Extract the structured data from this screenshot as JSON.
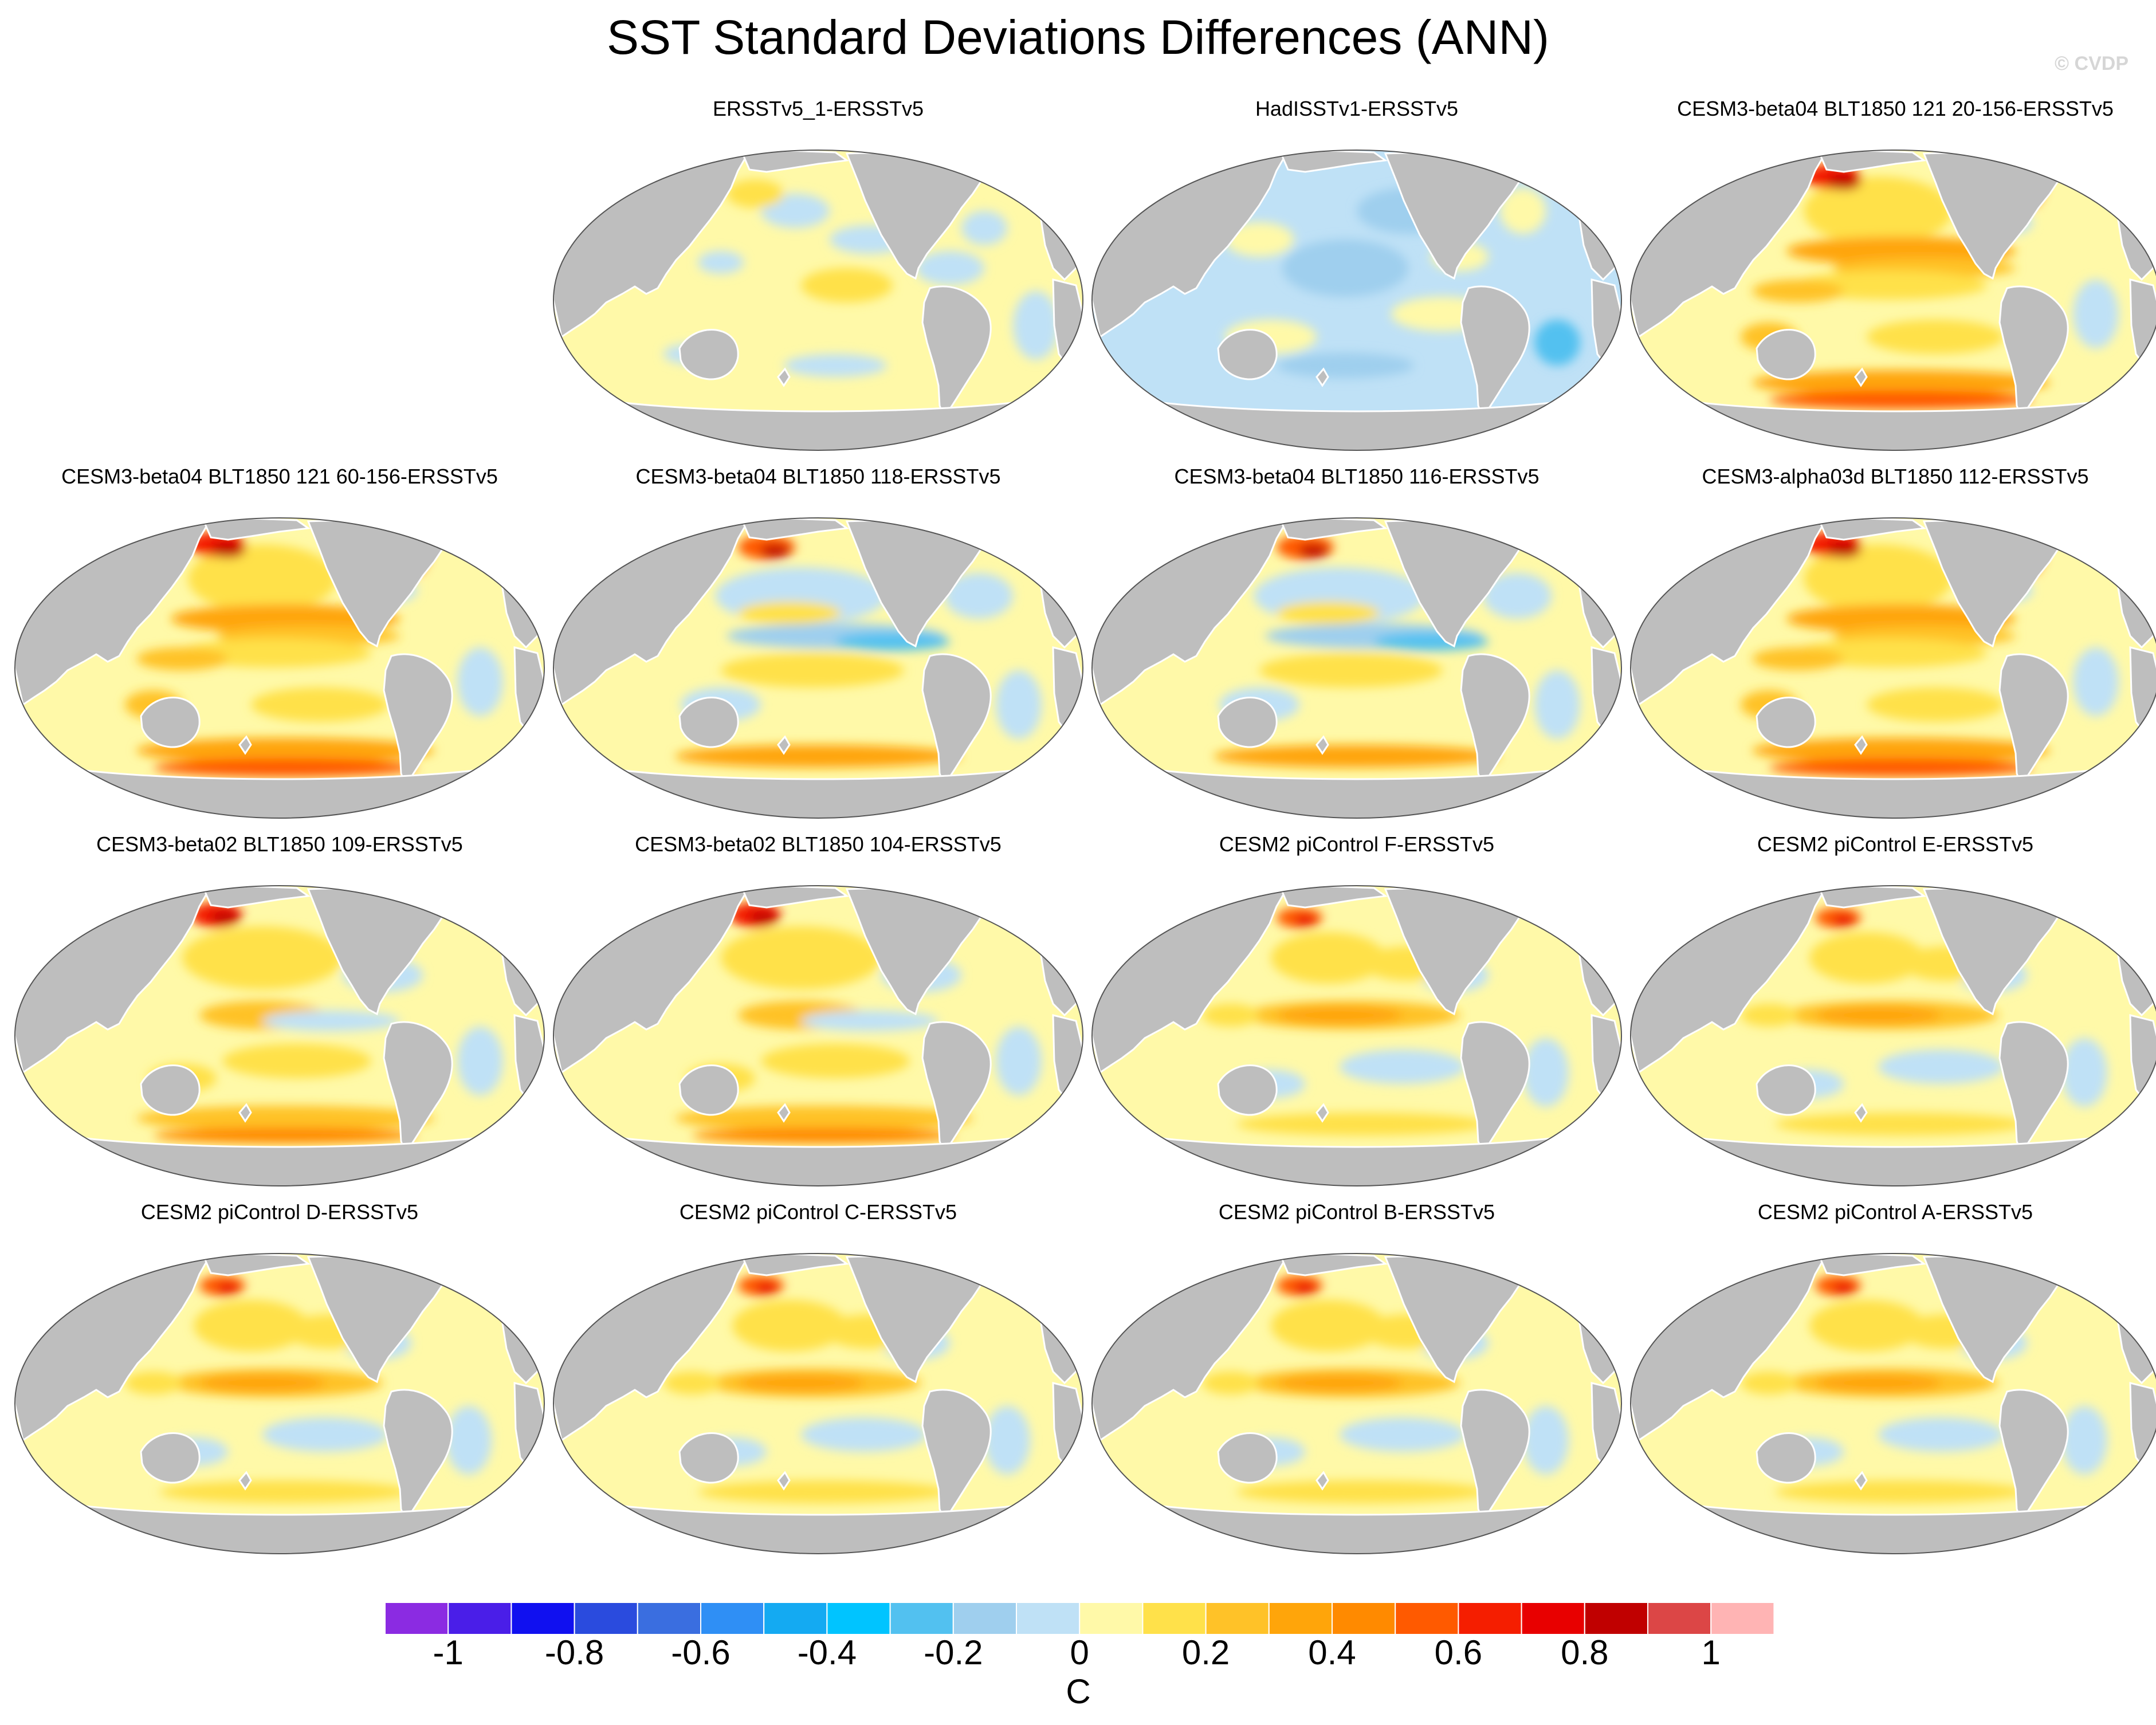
{
  "title": "SST Standard Deviations Differences (ANN)",
  "watermark": "© CVDP",
  "panels": [
    {
      "label": "ERSSTv5_1-ERSSTv5",
      "pattern": "yellow-mild"
    },
    {
      "label": "HadISSTv1-ERSSTv5",
      "pattern": "blue-dominant"
    },
    {
      "label": "CESM3-beta04 BLT1850 121 20-156-ERSSTv5",
      "pattern": "warm-strong"
    },
    {
      "label": "CESM3-beta04 BLT1850 121 60-156-ERSSTv5",
      "pattern": "warm-strong"
    },
    {
      "label": "CESM3-beta04 BLT1850 118-ERSSTv5",
      "pattern": "mixed-blue-tropics"
    },
    {
      "label": "CESM3-beta04 BLT1850 116-ERSSTv5",
      "pattern": "mixed-blue-tropics"
    },
    {
      "label": "CESM3-alpha03d BLT1850 112-ERSSTv5",
      "pattern": "warm-strong"
    },
    {
      "label": "CESM3-beta02 BLT1850 109-ERSSTv5",
      "pattern": "warm-medium"
    },
    {
      "label": "CESM3-beta02 BLT1850 104-ERSSTv5",
      "pattern": "warm-medium"
    },
    {
      "label": "CESM2 piControl F-ERSSTv5",
      "pattern": "warm-light"
    },
    {
      "label": "CESM2 piControl E-ERSSTv5",
      "pattern": "warm-light"
    },
    {
      "label": "CESM2 piControl D-ERSSTv5",
      "pattern": "warm-light"
    },
    {
      "label": "CESM2 piControl C-ERSSTv5",
      "pattern": "warm-light"
    },
    {
      "label": "CESM2 piControl B-ERSSTv5",
      "pattern": "warm-light"
    },
    {
      "label": "CESM2 piControl A-ERSSTv5",
      "pattern": "warm-light"
    }
  ],
  "colorbar": {
    "colors": [
      "#8b2be2",
      "#4a1ee8",
      "#1010f0",
      "#2a4bde",
      "#3a6ee0",
      "#2f8ff5",
      "#14aaf2",
      "#00c4ff",
      "#52c1f0",
      "#9fcfee",
      "#bfe1f6",
      "#fff9a8",
      "#ffe14a",
      "#ffc228",
      "#ffa50a",
      "#ff8a00",
      "#ff5a00",
      "#f51e00",
      "#e80000",
      "#c00000",
      "#dc4646",
      "#ffb4b4"
    ],
    "ticks": [
      "-1",
      "-0.8",
      "-0.6",
      "-0.4",
      "-0.2",
      "0",
      "0.2",
      "0.4",
      "0.6",
      "0.8",
      "1"
    ],
    "unit": "C"
  }
}
